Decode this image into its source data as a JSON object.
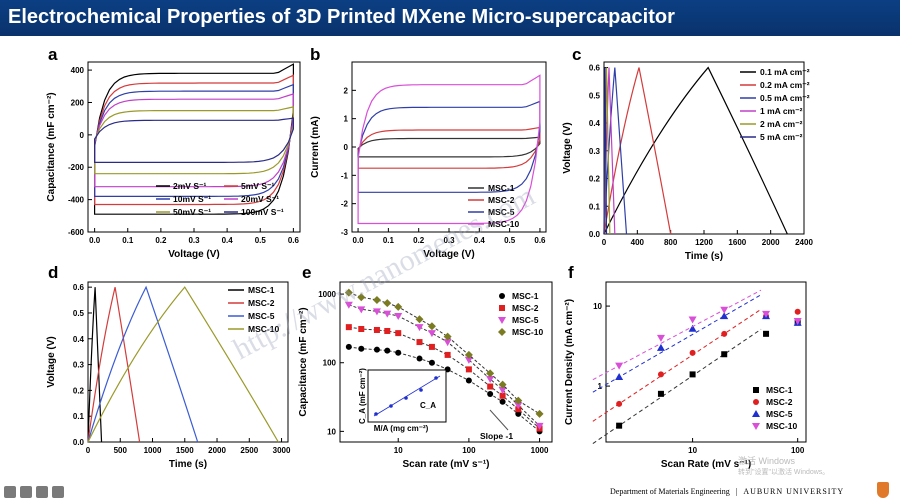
{
  "title": "Electrochemical Properties of 3D Printed MXene Micro-supercapacitor",
  "footer": {
    "dept": "Department of Materials Engineering",
    "sep": "|",
    "univ": "AUBURN UNIVERSITY",
    "watermark_os": "激活 Windows",
    "watermark_os2": "转到\"设置\"以激活 Windows。"
  },
  "watermark": "http://www.nanomenes.com",
  "colors": {
    "title_bg": "#0b3f83",
    "title_fg": "#ffffff"
  },
  "panels": {
    "a": {
      "label": "a",
      "chart_data": {
        "type": "line",
        "xlabel": "Voltage (V)",
        "ylabel": "Capacitance (mF cm⁻²)",
        "xlim": [
          -0.02,
          0.62
        ],
        "ylim": [
          -600,
          450
        ],
        "xticks": [
          "0.0",
          "0.1",
          "0.2",
          "0.3",
          "0.4",
          "0.5",
          "0.6"
        ],
        "yticks": [
          "400",
          "200",
          "0",
          "-200",
          "-400",
          "-600"
        ],
        "series": [
          {
            "name": "2mV S⁻¹",
            "color": "#000000",
            "top": 380,
            "bot": -490
          },
          {
            "name": "5mV S⁻¹",
            "color": "#d43b3b",
            "top": 320,
            "bot": -430
          },
          {
            "name": "10mV S⁻¹",
            "color": "#2f3fa8",
            "top": 270,
            "bot": -380
          },
          {
            "name": "20mV S⁻¹",
            "color": "#c040c8",
            "top": 220,
            "bot": -320
          },
          {
            "name": "50mV S⁻¹",
            "color": "#9a9a2a",
            "top": 150,
            "bot": -240
          },
          {
            "name": "100mV S⁻¹",
            "color": "#2a2a88",
            "top": 90,
            "bot": -170
          }
        ]
      }
    },
    "b": {
      "label": "b",
      "chart_data": {
        "type": "line",
        "xlabel": "Voltage (V)",
        "ylabel": "Current (mA)",
        "xlim": [
          -0.02,
          0.62
        ],
        "ylim": [
          -3,
          3
        ],
        "xticks": [
          "0.0",
          "0.1",
          "0.2",
          "0.3",
          "0.4",
          "0.5",
          "0.6"
        ],
        "yticks": [
          "2",
          "1",
          "0",
          "-1",
          "-2",
          "-3"
        ],
        "series": [
          {
            "name": "MSC-1",
            "color": "#333333",
            "top": 0.3,
            "bot": -0.35
          },
          {
            "name": "MSC-2",
            "color": "#d43b3b",
            "top": 0.6,
            "bot": -0.75
          },
          {
            "name": "MSC-5",
            "color": "#2f3fa8",
            "top": 1.4,
            "bot": -1.6
          },
          {
            "name": "MSC-10",
            "color": "#d94fd8",
            "top": 2.2,
            "bot": -2.7
          }
        ]
      }
    },
    "c": {
      "label": "c",
      "chart_data": {
        "type": "line",
        "xlabel": "Time (s)",
        "ylabel": "Voltage (V)",
        "xlim": [
          0,
          2400
        ],
        "ylim": [
          0,
          0.62
        ],
        "xticks": [
          "0",
          "400",
          "800",
          "1200",
          "1600",
          "2000",
          "2400"
        ],
        "yticks": [
          "0.0",
          "0.1",
          "0.2",
          "0.3",
          "0.4",
          "0.5",
          "0.6"
        ],
        "series": [
          {
            "name": "0.1 mA cm⁻²",
            "color": "#000000",
            "charge": 1250,
            "end": 2200
          },
          {
            "name": "0.2 mA cm⁻²",
            "color": "#d43b3b",
            "charge": 420,
            "end": 800
          },
          {
            "name": "0.5 mA cm⁻²",
            "color": "#2f3fa8",
            "charge": 130,
            "end": 270
          },
          {
            "name": "1 mA cm⁻²",
            "color": "#c040c8",
            "charge": 60,
            "end": 130
          },
          {
            "name": "2 mA cm⁻²",
            "color": "#9a9a2a",
            "charge": 30,
            "end": 70
          },
          {
            "name": "5 mA cm⁻²",
            "color": "#2a2a88",
            "charge": 12,
            "end": 30
          }
        ]
      }
    },
    "d": {
      "label": "d",
      "chart_data": {
        "type": "line",
        "xlabel": "Time (s)",
        "ylabel": "Voltage (V)",
        "xlim": [
          0,
          3100
        ],
        "ylim": [
          0,
          0.62
        ],
        "xticks": [
          "0",
          "500",
          "1000",
          "1500",
          "2000",
          "2500",
          "3000"
        ],
        "yticks": [
          "0.0",
          "0.1",
          "0.2",
          "0.3",
          "0.4",
          "0.5",
          "0.6"
        ],
        "series": [
          {
            "name": "MSC-1",
            "color": "#000000",
            "charge": 110,
            "end": 210
          },
          {
            "name": "MSC-2",
            "color": "#d43b3b",
            "charge": 420,
            "end": 800
          },
          {
            "name": "MSC-5",
            "color": "#3a5bd4",
            "charge": 900,
            "end": 1700
          },
          {
            "name": "MSC-10",
            "color": "#9a9a2a",
            "charge": 1500,
            "end": 2950
          }
        ]
      }
    },
    "e": {
      "label": "e",
      "chart_data": {
        "type": "scatter",
        "xlabel": "Scan rate (mV s⁻¹)",
        "ylabel": "Capacitance (mF cm⁻²)",
        "xscale": "log",
        "yscale": "log",
        "xlim": [
          1.5,
          1500
        ],
        "ylim": [
          7,
          1500
        ],
        "xticks": [
          "10",
          "100",
          "1000"
        ],
        "yticks": [
          "1000",
          "100",
          "10"
        ],
        "x": [
          2,
          3,
          5,
          7,
          10,
          20,
          30,
          50,
          100,
          200,
          300,
          500,
          1000
        ],
        "series": [
          {
            "name": "MSC-1",
            "color": "#000000",
            "marker": "circle",
            "values": [
              170,
              160,
              155,
              150,
              140,
              115,
              100,
              80,
              55,
              35,
              27,
              18,
              10
            ]
          },
          {
            "name": "MSC-2",
            "color": "#e02020",
            "marker": "square",
            "values": [
              330,
              310,
              300,
              290,
              270,
              200,
              170,
              130,
              80,
              45,
              33,
              21,
              11
            ]
          },
          {
            "name": "MSC-5",
            "color": "#d94fd8",
            "marker": "triangle-down",
            "values": [
              700,
              600,
              560,
              520,
              480,
              330,
              270,
              200,
              110,
              58,
              40,
              24,
              12
            ]
          },
          {
            "name": "MSC-10",
            "color": "#7b7b22",
            "marker": "diamond",
            "values": [
              1050,
              900,
              820,
              740,
              650,
              430,
              340,
              240,
              130,
              70,
              48,
              28,
              18
            ]
          }
        ],
        "annotation": "Slope -1",
        "inset": {
          "xlabel": "M/A (mg cm⁻²)",
          "ylabel": "C_A (mF cm⁻²)",
          "legend": "C_A",
          "x": [
            1,
            2,
            3,
            4,
            5
          ],
          "values": [
            1,
            1.8,
            2.6,
            3.4,
            4.6
          ]
        }
      }
    },
    "f": {
      "label": "f",
      "chart_data": {
        "type": "scatter",
        "xlabel": "Scan Rate (mV s⁻¹)",
        "ylabel": "Current Density (mA cm⁻²)",
        "xscale": "log",
        "yscale": "log",
        "xlim": [
          1.5,
          120
        ],
        "ylim": [
          0.2,
          20
        ],
        "xticks": [
          "10",
          "100"
        ],
        "yticks": [
          "10",
          "1"
        ],
        "x": [
          2,
          5,
          10,
          20,
          50,
          100
        ],
        "series": [
          {
            "name": "MSC-1",
            "color": "#000000",
            "marker": "square",
            "values": [
              0.32,
              0.8,
              1.4,
              2.5,
              4.5,
              6.2
            ]
          },
          {
            "name": "MSC-2",
            "color": "#e02020",
            "marker": "circle",
            "values": [
              0.6,
              1.4,
              2.6,
              4.5,
              7.5,
              8.5
            ]
          },
          {
            "name": "MSC-5",
            "color": "#2030d0",
            "marker": "triangle-up",
            "values": [
              1.3,
              3.0,
              5.2,
              7.5,
              7.5,
              6.2
            ]
          },
          {
            "name": "MSC-10",
            "color": "#d94fd8",
            "marker": "triangle-down",
            "values": [
              1.8,
              4.0,
              6.8,
              9.0,
              8.0,
              6.5
            ]
          }
        ]
      }
    }
  }
}
